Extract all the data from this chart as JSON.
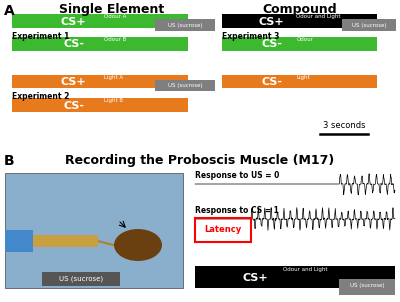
{
  "green_color": "#3CB92E",
  "orange_color": "#E87A1E",
  "black_color": "#000000",
  "gray_color": "#7F7F7F",
  "white_color": "#FFFFFF",
  "bg_color": "#FFFFFF",
  "scale_bar_text": "3 seconds",
  "response_US_text": "Response to US = 0",
  "response_CS_text": "Response to CS = 1",
  "latency_text": "Latency",
  "US_sucrose_text": "US (sucrose)",
  "exp1_text": "Experiment 1",
  "exp2_text": "Experiment 2",
  "exp3_text": "Experiment 3",
  "single_element_title": "Single Element",
  "compound_title": "Compound",
  "panel_B_title": "Recording the Proboscis Muscle (M17)"
}
